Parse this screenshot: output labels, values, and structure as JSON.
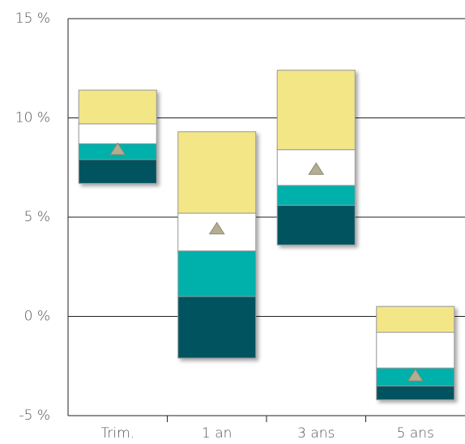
{
  "chart_data": {
    "type": "floating_stacked_bar",
    "categories": [
      "Trim.",
      "1 an",
      "3 ans",
      "5 ans"
    ],
    "lows": [
      6.7,
      -2.1,
      3.6,
      -4.2
    ],
    "series": [
      {
        "color": "#00525e",
        "values": [
          1.2,
          3.1,
          2.0,
          0.7
        ]
      },
      {
        "color": "#00b0aa",
        "values": [
          0.8,
          2.3,
          1.0,
          0.9
        ]
      },
      {
        "color": "#ffffff",
        "values": [
          1.0,
          1.9,
          1.8,
          1.8
        ]
      },
      {
        "color": "#f3e686",
        "values": [
          1.7,
          4.1,
          4.0,
          1.3
        ]
      }
    ],
    "markers": {
      "color": "#b5ad90",
      "values": [
        8.4,
        4.4,
        7.4,
        -3.0
      ]
    },
    "ylim": [
      -5,
      15
    ],
    "yticks": [
      {
        "value": -5,
        "label": "-5 %"
      },
      {
        "value": 0,
        "label": "0 %"
      },
      {
        "value": 5,
        "label": "5 %"
      },
      {
        "value": 10,
        "label": "10 %"
      },
      {
        "value": 15,
        "label": "15 %"
      }
    ],
    "grid": true
  }
}
